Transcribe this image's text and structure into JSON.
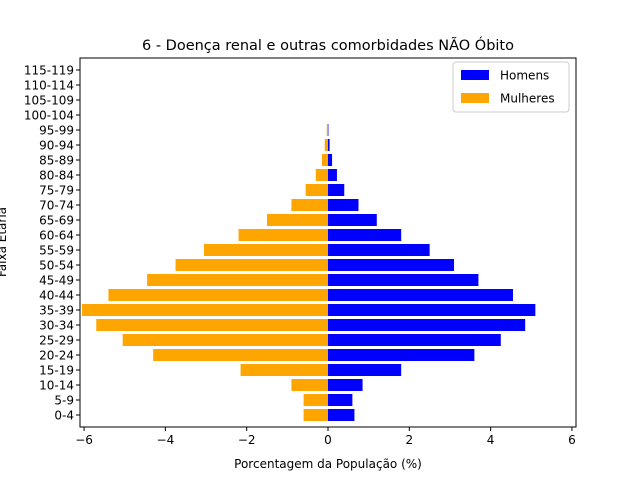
{
  "chart_data": {
    "type": "bar",
    "orientation": "horizontal",
    "title": "6 - Doença renal e outras comorbidades NÃO Óbito",
    "xlabel": "Porcentagem da População (%)",
    "ylabel": "Faixa Etária",
    "xlim": [
      -6.1,
      6.1
    ],
    "xticks": [
      -6,
      -4,
      -2,
      0,
      2,
      4,
      6
    ],
    "xtick_labels": [
      "−6",
      "−4",
      "−2",
      "0",
      "2",
      "4",
      "6"
    ],
    "categories": [
      "0-4",
      "5-9",
      "10-14",
      "15-19",
      "20-24",
      "25-29",
      "30-34",
      "35-39",
      "40-44",
      "45-49",
      "50-54",
      "55-59",
      "60-64",
      "65-69",
      "70-74",
      "75-79",
      "80-84",
      "85-89",
      "90-94",
      "95-99",
      "100-104",
      "105-109",
      "110-114",
      "115-119"
    ],
    "series": [
      {
        "name": "Homens",
        "color": "#0000ff",
        "values": [
          0.65,
          0.6,
          0.85,
          1.8,
          3.6,
          4.25,
          4.85,
          5.1,
          4.55,
          3.7,
          3.1,
          2.5,
          1.8,
          1.2,
          0.75,
          0.4,
          0.22,
          0.1,
          0.04,
          0.01,
          0,
          0,
          0,
          0
        ]
      },
      {
        "name": "Mulheres",
        "color": "#ffa500",
        "values": [
          -0.6,
          -0.6,
          -0.9,
          -2.15,
          -4.3,
          -5.05,
          -5.7,
          -6.05,
          -5.4,
          -4.45,
          -3.75,
          -3.05,
          -2.2,
          -1.5,
          -0.9,
          -0.55,
          -0.3,
          -0.15,
          -0.08,
          -0.03,
          0,
          0,
          0,
          0
        ]
      }
    ],
    "legend_position": "top-right",
    "grid": false
  }
}
